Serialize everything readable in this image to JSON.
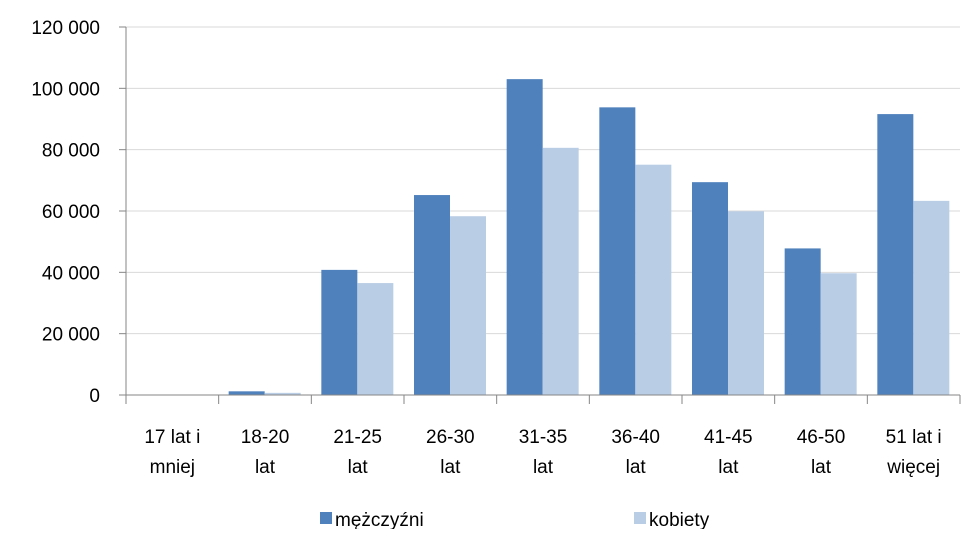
{
  "chart_data": {
    "type": "bar",
    "categories": [
      [
        "17 lat i",
        "mniej"
      ],
      [
        "18-20",
        "lat"
      ],
      [
        "21-25",
        "lat"
      ],
      [
        "26-30",
        "lat"
      ],
      [
        "31-35",
        "lat"
      ],
      [
        "36-40",
        "lat"
      ],
      [
        "41-45",
        "lat"
      ],
      [
        "46-50",
        "lat"
      ],
      [
        "51 lat i",
        "więcej"
      ]
    ],
    "series": [
      {
        "name": "mężczyźni",
        "color": "#4f81bd",
        "values": [
          0,
          1200,
          40800,
          65200,
          103000,
          93800,
          69400,
          47800,
          91600
        ]
      },
      {
        "name": "kobiety",
        "color": "#b9cde5",
        "values": [
          0,
          700,
          36500,
          58300,
          80600,
          75100,
          59900,
          39700,
          63300
        ]
      }
    ],
    "ylim": [
      0,
      120000
    ],
    "yticks": [
      0,
      20000,
      40000,
      60000,
      80000,
      100000,
      120000
    ],
    "ytick_labels": [
      "0",
      "20 000",
      "40 000",
      "60 000",
      "80 000",
      "100 000",
      "120 000"
    ],
    "grid": true,
    "legend_position": "bottom",
    "xlabel": "",
    "ylabel": "",
    "title": ""
  }
}
